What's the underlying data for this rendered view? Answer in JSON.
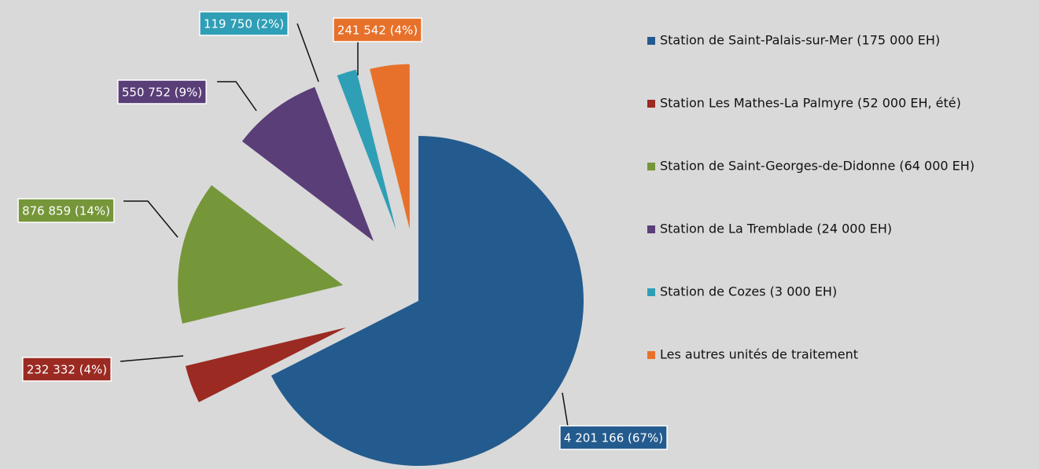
{
  "chart_data": {
    "type": "pie",
    "categories": [
      "Station de Saint-Palais-sur-Mer (175 000 EH)",
      "Station Les Mathes-La Palmyre (52 000 EH, été)",
      "Station de Saint-Georges-de-Didonne (64 000 EH)",
      "Station de La Tremblade (24 000 EH)",
      "Station de Cozes (3 000 EH)",
      "Les autres unités de traitement"
    ],
    "values": [
      4201166,
      232332,
      876859,
      550752,
      119750,
      241542
    ],
    "value_labels": [
      "4 201 166 (67%)",
      "232 332 (4%)",
      "876 859 (14%)",
      "550 752 (9%)",
      "119 750 (2%)",
      "241 542 (4%)"
    ],
    "colors": [
      "#245b8e",
      "#9b2a22",
      "#76963a",
      "#5a3e78",
      "#2f9fb6",
      "#e7712a"
    ],
    "legend": "right"
  }
}
